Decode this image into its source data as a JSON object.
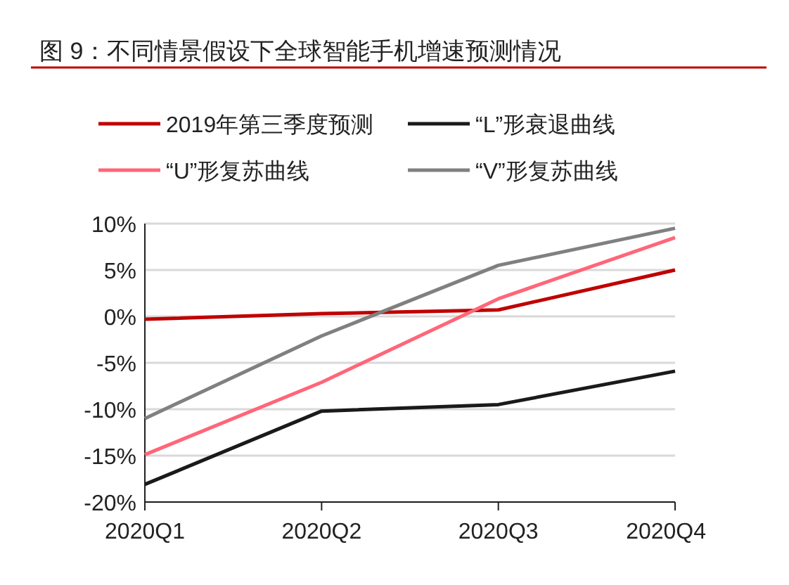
{
  "chart_data": {
    "type": "line",
    "title": "图 9：不同情景假设下全球智能手机增速预测情况",
    "categories": [
      "2020Q1",
      "2020Q2",
      "2020Q3",
      "2020Q4"
    ],
    "series": [
      {
        "name": "2019年第三季度预测",
        "color": "#c00000",
        "values": [
          -0.3,
          0.3,
          0.7,
          5.0
        ]
      },
      {
        "name": "“L”形衰退曲线",
        "color": "#1a1a1a",
        "values": [
          -18.1,
          -10.2,
          -9.5,
          -5.9
        ]
      },
      {
        "name": "“U”形复苏曲线",
        "color": "#ff6678",
        "values": [
          -14.9,
          -7.1,
          1.9,
          8.5
        ]
      },
      {
        "name": "“V”形复苏曲线",
        "color": "#808080",
        "values": [
          -11,
          -2.1,
          5.5,
          9.5
        ]
      }
    ],
    "ylim": [
      -20,
      10
    ],
    "yticks": [
      {
        "value": -20,
        "label": "-20%"
      },
      {
        "value": -15,
        "label": "-15%"
      },
      {
        "value": -10,
        "label": "-10%"
      },
      {
        "value": -5,
        "label": "-5%"
      },
      {
        "value": 0,
        "label": "0%"
      },
      {
        "value": 5,
        "label": "5%"
      },
      {
        "value": 10,
        "label": "10%"
      }
    ],
    "grid": "y",
    "legend": "top",
    "marker": "none",
    "line_style": "solid"
  }
}
